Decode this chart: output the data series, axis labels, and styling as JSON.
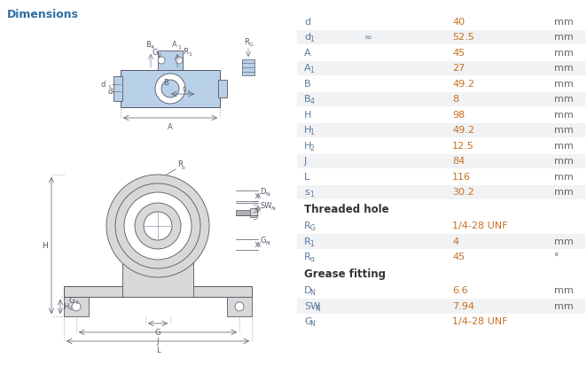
{
  "title": "Dimensions",
  "title_color": "#2e6da4",
  "bg_color": "#ffffff",
  "label_color": "#5a7a9a",
  "value_color": "#c87020",
  "unit_color": "#666666",
  "header_color": "#333333",
  "row_bg_odd": "#f0f2f4",
  "row_bg_even": "#ffffff",
  "draw_color": "#4a6a8a",
  "draw_line": "#555555",
  "rows": [
    {
      "label": "d",
      "sub": "",
      "approx": false,
      "value": "40",
      "unit": "mm"
    },
    {
      "label": "d",
      "sub": "1",
      "approx": true,
      "value": "52.5",
      "unit": "mm"
    },
    {
      "label": "A",
      "sub": "",
      "approx": false,
      "value": "45",
      "unit": "mm"
    },
    {
      "label": "A",
      "sub": "1",
      "approx": false,
      "value": "27",
      "unit": "mm"
    },
    {
      "label": "B",
      "sub": "",
      "approx": false,
      "value": "49.2",
      "unit": "mm"
    },
    {
      "label": "B",
      "sub": "4",
      "approx": false,
      "value": "8",
      "unit": "mm"
    },
    {
      "label": "H",
      "sub": "",
      "approx": false,
      "value": "98",
      "unit": "mm"
    },
    {
      "label": "H",
      "sub": "1",
      "approx": false,
      "value": "49.2",
      "unit": "mm"
    },
    {
      "label": "H",
      "sub": "2",
      "approx": false,
      "value": "12.5",
      "unit": "mm"
    },
    {
      "label": "J",
      "sub": "",
      "approx": false,
      "value": "84",
      "unit": "mm"
    },
    {
      "label": "L",
      "sub": "",
      "approx": false,
      "value": "116",
      "unit": "mm"
    },
    {
      "label": "s",
      "sub": "1",
      "approx": false,
      "value": "30.2",
      "unit": "mm"
    }
  ],
  "section_threaded": "Threaded hole",
  "threaded_rows": [
    {
      "label": "R",
      "sub": "G",
      "approx": false,
      "value": "1/4-28 UNF",
      "unit": ""
    },
    {
      "label": "R",
      "sub": "1",
      "approx": false,
      "value": "4",
      "unit": "mm"
    },
    {
      "label": "R",
      "sub": "α",
      "approx": false,
      "value": "45",
      "unit": "°"
    }
  ],
  "section_grease": "Grease fitting",
  "grease_rows": [
    {
      "label": "D",
      "sub": "N",
      "approx": false,
      "value": "6.6",
      "unit": "mm"
    },
    {
      "label": "SW",
      "sub": "N",
      "approx": false,
      "value": "7.94",
      "unit": "mm"
    },
    {
      "label": "G",
      "sub": "N",
      "approx": false,
      "value": "1/4-28 UNF",
      "unit": ""
    }
  ]
}
